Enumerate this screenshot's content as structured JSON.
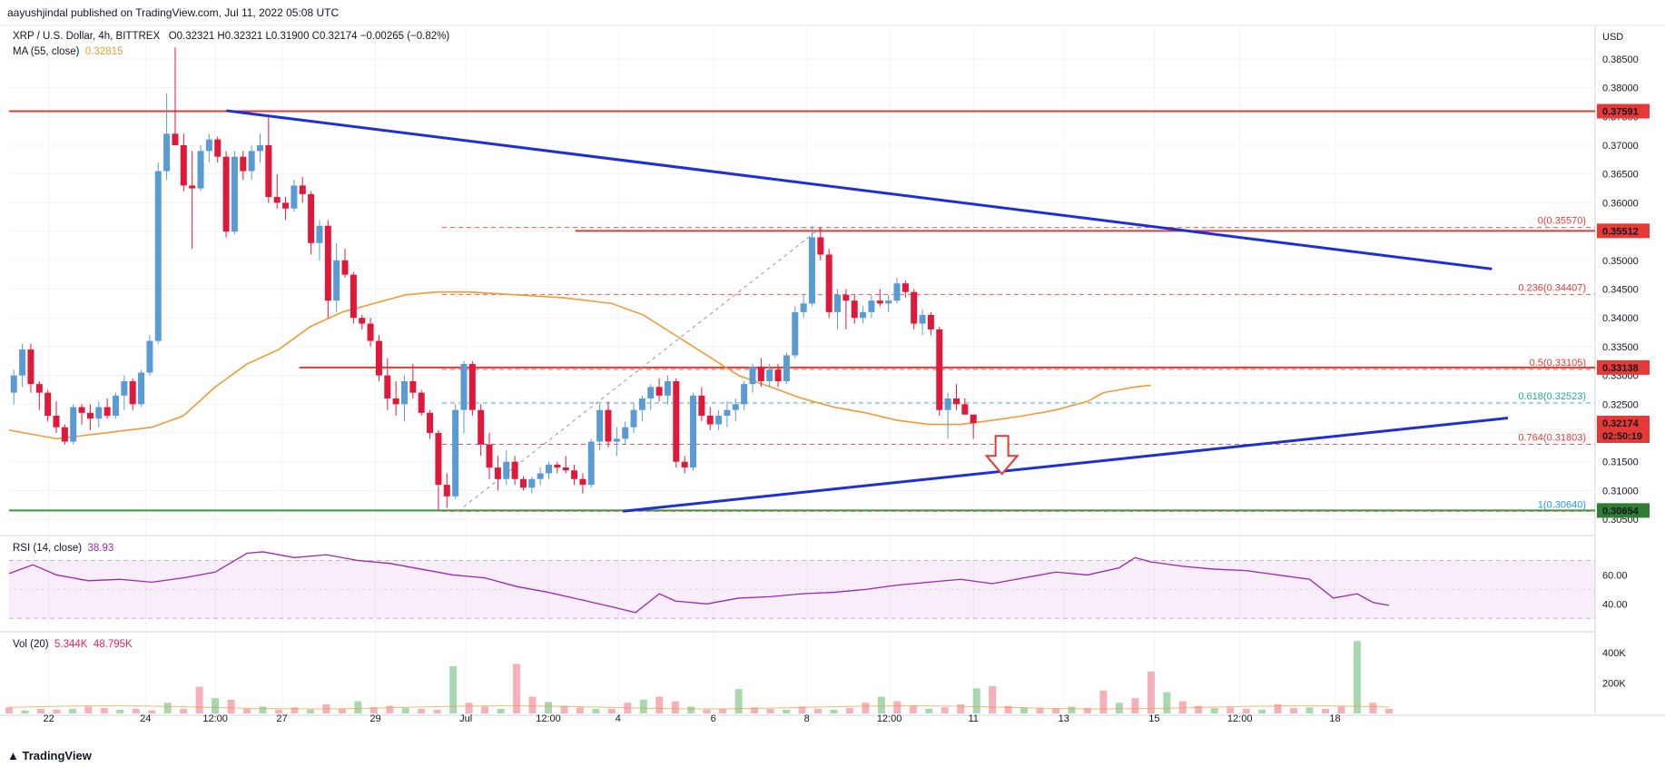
{
  "header": {
    "publisher_text": "aayushjindal published on TradingView.com, Jul 11, 2022 05:08 UTC"
  },
  "symbol_legend": {
    "title": "XRP / U.S. Dollar, 4h, BITTREX",
    "ohlc": "O0.32321  H0.32321  L0.31900  C0.32174  −0.00265 (−0.82%)",
    "ma_label": "MA (55, close)",
    "ma_value": "0.32815"
  },
  "rsi_legend": {
    "label": "RSI (14, close)",
    "value": "38.93"
  },
  "vol_legend": {
    "label": "Vol (20)",
    "v1": "5.344K",
    "v2": "48.795K"
  },
  "price_axis": {
    "currency": "USD",
    "ticks": [
      "0.38500",
      "0.38000",
      "0.37500",
      "0.37000",
      "0.36500",
      "0.36000",
      "0.35500",
      "0.35000",
      "0.34500",
      "0.34000",
      "0.33500",
      "0.33000",
      "0.32500",
      "0.32000",
      "0.31500",
      "0.31000",
      "0.30500"
    ],
    "tags": [
      {
        "text": "0.37591",
        "color": "#e53935"
      },
      {
        "text": "0.35512",
        "color": "#e53935"
      },
      {
        "text": "0.33138",
        "color": "#e53935"
      },
      {
        "text": "0.32174",
        "color": "#e53935"
      },
      {
        "text": "02:50:19",
        "color": "#e53935"
      },
      {
        "text": "0.30654",
        "color": "#2e7d32"
      }
    ]
  },
  "rsi_axis": {
    "ticks": [
      "60.00",
      "40.00"
    ]
  },
  "vol_axis": {
    "ticks": [
      "400K",
      "200K"
    ]
  },
  "time_axis": {
    "ticks": [
      "22",
      "24",
      "12:00",
      "27",
      "29",
      "Jul",
      "12:00",
      "4",
      "6",
      "8",
      "12:00",
      "11",
      "13",
      "15",
      "12:00",
      "18"
    ]
  },
  "fib_labels": [
    "0(0.35570)",
    "0.236(0.34407)",
    "0.5(0.33105)",
    "0.618(0.32523)",
    "0.764(0.31803)",
    "1(0.30640)"
  ],
  "footer": {
    "brand": "TradingView"
  },
  "colors": {
    "up": "#5b9bd5",
    "down": "#e0193b",
    "ma": "#f09a36",
    "trendline": "#1e2fd6",
    "level": "#e53935",
    "support": "#2e9d3a",
    "rsi": "#9c27b0"
  },
  "chart_data": {
    "type": "candlestick",
    "symbol": "XRP / U.S. Dollar",
    "timeframe": "4h",
    "ylim": [
      0.3025,
      0.3905
    ],
    "horizontal_levels": [
      0.37591,
      0.35512,
      0.33138,
      0.30654
    ],
    "fib_levels": [
      {
        "ratio": 0,
        "price": 0.3557
      },
      {
        "ratio": 0.236,
        "price": 0.34407
      },
      {
        "ratio": 0.5,
        "price": 0.33105
      },
      {
        "ratio": 0.618,
        "price": 0.32523
      },
      {
        "ratio": 0.764,
        "price": 0.31803
      },
      {
        "ratio": 1,
        "price": 0.3064
      }
    ],
    "trendlines": [
      {
        "name": "bearish trend line",
        "from": [
          0.137,
          0.376
        ],
        "to": [
          0.935,
          0.3485
        ]
      },
      {
        "name": "bullish trend line",
        "from": [
          0.387,
          0.3064
        ],
        "to": [
          0.945,
          0.3226
        ]
      }
    ],
    "candles": [
      [
        0.327,
        0.331,
        0.325,
        0.33
      ],
      [
        0.33,
        0.3355,
        0.328,
        0.3345
      ],
      [
        0.3345,
        0.3355,
        0.327,
        0.3285
      ],
      [
        0.3285,
        0.329,
        0.324,
        0.327
      ],
      [
        0.327,
        0.3275,
        0.322,
        0.323
      ],
      [
        0.323,
        0.3255,
        0.32,
        0.321
      ],
      [
        0.321,
        0.3215,
        0.318,
        0.3185
      ],
      [
        0.3185,
        0.325,
        0.318,
        0.3245
      ],
      [
        0.3245,
        0.325,
        0.3215,
        0.3235
      ],
      [
        0.3235,
        0.325,
        0.3205,
        0.3225
      ],
      [
        0.3225,
        0.3255,
        0.321,
        0.3245
      ],
      [
        0.3245,
        0.326,
        0.3225,
        0.323
      ],
      [
        0.323,
        0.327,
        0.3225,
        0.3265
      ],
      [
        0.3265,
        0.33,
        0.324,
        0.329
      ],
      [
        0.329,
        0.3295,
        0.324,
        0.325
      ],
      [
        0.325,
        0.331,
        0.3245,
        0.3305
      ],
      [
        0.3305,
        0.337,
        0.33,
        0.336
      ],
      [
        0.336,
        0.367,
        0.3355,
        0.3655
      ],
      [
        0.3655,
        0.379,
        0.364,
        0.372
      ],
      [
        0.372,
        0.387,
        0.37,
        0.37
      ],
      [
        0.37,
        0.372,
        0.362,
        0.363
      ],
      [
        0.363,
        0.369,
        0.352,
        0.3625
      ],
      [
        0.3625,
        0.37,
        0.362,
        0.369
      ],
      [
        0.369,
        0.372,
        0.367,
        0.371
      ],
      [
        0.371,
        0.3715,
        0.367,
        0.368
      ],
      [
        0.368,
        0.369,
        0.354,
        0.355
      ],
      [
        0.355,
        0.369,
        0.3545,
        0.368
      ],
      [
        0.368,
        0.369,
        0.364,
        0.3655
      ],
      [
        0.3655,
        0.37,
        0.364,
        0.369
      ],
      [
        0.369,
        0.372,
        0.367,
        0.37
      ],
      [
        0.37,
        0.375,
        0.36,
        0.361
      ],
      [
        0.361,
        0.365,
        0.359,
        0.36
      ],
      [
        0.36,
        0.361,
        0.357,
        0.359
      ],
      [
        0.359,
        0.364,
        0.3585,
        0.363
      ],
      [
        0.363,
        0.3645,
        0.36,
        0.3615
      ],
      [
        0.3615,
        0.362,
        0.351,
        0.353
      ],
      [
        0.353,
        0.357,
        0.35,
        0.356
      ],
      [
        0.356,
        0.357,
        0.34,
        0.343
      ],
      [
        0.343,
        0.353,
        0.341,
        0.35
      ],
      [
        0.35,
        0.352,
        0.347,
        0.3475
      ],
      [
        0.3475,
        0.348,
        0.339,
        0.34
      ],
      [
        0.34,
        0.3405,
        0.338,
        0.339
      ],
      [
        0.339,
        0.34,
        0.335,
        0.336
      ],
      [
        0.336,
        0.337,
        0.329,
        0.33
      ],
      [
        0.33,
        0.333,
        0.324,
        0.326
      ],
      [
        0.326,
        0.329,
        0.323,
        0.325
      ],
      [
        0.325,
        0.33,
        0.322,
        0.329
      ],
      [
        0.329,
        0.332,
        0.326,
        0.327
      ],
      [
        0.327,
        0.3275,
        0.323,
        0.3235
      ],
      [
        0.3235,
        0.324,
        0.319,
        0.32
      ],
      [
        0.32,
        0.3205,
        0.3065,
        0.311
      ],
      [
        0.311,
        0.313,
        0.307,
        0.309
      ],
      [
        0.309,
        0.325,
        0.3085,
        0.324
      ],
      [
        0.324,
        0.3325,
        0.32,
        0.332
      ],
      [
        0.332,
        0.3325,
        0.323,
        0.324
      ],
      [
        0.324,
        0.325,
        0.316,
        0.318
      ],
      [
        0.318,
        0.32,
        0.312,
        0.314
      ],
      [
        0.314,
        0.316,
        0.31,
        0.312
      ],
      [
        0.312,
        0.317,
        0.311,
        0.315
      ],
      [
        0.315,
        0.316,
        0.311,
        0.312
      ],
      [
        0.312,
        0.3125,
        0.31,
        0.3105
      ],
      [
        0.3105,
        0.3125,
        0.3095,
        0.312
      ],
      [
        0.312,
        0.314,
        0.311,
        0.313
      ],
      [
        0.313,
        0.315,
        0.312,
        0.3145
      ],
      [
        0.3145,
        0.315,
        0.313,
        0.314
      ],
      [
        0.314,
        0.316,
        0.313,
        0.3135
      ],
      [
        0.3135,
        0.3145,
        0.311,
        0.312
      ],
      [
        0.312,
        0.313,
        0.3095,
        0.311
      ],
      [
        0.311,
        0.319,
        0.3105,
        0.3185
      ],
      [
        0.3185,
        0.325,
        0.317,
        0.324
      ],
      [
        0.324,
        0.3255,
        0.3175,
        0.3185
      ],
      [
        0.3185,
        0.321,
        0.316,
        0.319
      ],
      [
        0.319,
        0.322,
        0.318,
        0.321
      ],
      [
        0.321,
        0.325,
        0.32,
        0.324
      ],
      [
        0.324,
        0.3265,
        0.322,
        0.326
      ],
      [
        0.326,
        0.3285,
        0.324,
        0.328
      ],
      [
        0.328,
        0.3295,
        0.3255,
        0.3265
      ],
      [
        0.3265,
        0.33,
        0.325,
        0.329
      ],
      [
        0.329,
        0.3295,
        0.314,
        0.315
      ],
      [
        0.315,
        0.316,
        0.313,
        0.314
      ],
      [
        0.314,
        0.327,
        0.3135,
        0.3265
      ],
      [
        0.3265,
        0.328,
        0.322,
        0.323
      ],
      [
        0.323,
        0.3245,
        0.3205,
        0.3215
      ],
      [
        0.3215,
        0.324,
        0.3205,
        0.323
      ],
      [
        0.323,
        0.3255,
        0.321,
        0.324
      ],
      [
        0.324,
        0.326,
        0.322,
        0.325
      ],
      [
        0.325,
        0.329,
        0.324,
        0.3285
      ],
      [
        0.3285,
        0.332,
        0.327,
        0.3315
      ],
      [
        0.3315,
        0.333,
        0.328,
        0.329
      ],
      [
        0.329,
        0.332,
        0.328,
        0.331
      ],
      [
        0.331,
        0.332,
        0.328,
        0.329
      ],
      [
        0.329,
        0.334,
        0.3285,
        0.3335
      ],
      [
        0.3335,
        0.342,
        0.333,
        0.341
      ],
      [
        0.341,
        0.344,
        0.34,
        0.3425
      ],
      [
        0.3425,
        0.356,
        0.342,
        0.354
      ],
      [
        0.354,
        0.3557,
        0.35,
        0.351
      ],
      [
        0.351,
        0.352,
        0.34,
        0.341
      ],
      [
        0.341,
        0.345,
        0.338,
        0.344
      ],
      [
        0.344,
        0.345,
        0.338,
        0.343
      ],
      [
        0.343,
        0.344,
        0.339,
        0.34
      ],
      [
        0.34,
        0.342,
        0.339,
        0.341
      ],
      [
        0.341,
        0.344,
        0.34,
        0.343
      ],
      [
        0.343,
        0.345,
        0.342,
        0.3425
      ],
      [
        0.3425,
        0.344,
        0.341,
        0.343
      ],
      [
        0.343,
        0.347,
        0.3425,
        0.346
      ],
      [
        0.346,
        0.3465,
        0.3435,
        0.3445
      ],
      [
        0.3445,
        0.345,
        0.338,
        0.339
      ],
      [
        0.339,
        0.3415,
        0.337,
        0.3405
      ],
      [
        0.3405,
        0.341,
        0.337,
        0.338
      ],
      [
        0.338,
        0.3385,
        0.323,
        0.324
      ],
      [
        0.324,
        0.327,
        0.319,
        0.326
      ],
      [
        0.326,
        0.3285,
        0.324,
        0.325
      ],
      [
        0.325,
        0.326,
        0.324,
        0.3232
      ],
      [
        0.3232,
        0.3232,
        0.319,
        0.3217
      ]
    ],
    "ma55": [
      [
        0.0,
        0.3205
      ],
      [
        0.03,
        0.319
      ],
      [
        0.06,
        0.32
      ],
      [
        0.09,
        0.321
      ],
      [
        0.11,
        0.323
      ],
      [
        0.13,
        0.328
      ],
      [
        0.15,
        0.332
      ],
      [
        0.17,
        0.3345
      ],
      [
        0.19,
        0.3385
      ],
      [
        0.21,
        0.341
      ],
      [
        0.23,
        0.3425
      ],
      [
        0.25,
        0.344
      ],
      [
        0.27,
        0.3445
      ],
      [
        0.29,
        0.3445
      ],
      [
        0.32,
        0.344
      ],
      [
        0.35,
        0.3435
      ],
      [
        0.38,
        0.3425
      ],
      [
        0.4,
        0.3405
      ],
      [
        0.42,
        0.337
      ],
      [
        0.44,
        0.3335
      ],
      [
        0.46,
        0.33
      ],
      [
        0.48,
        0.328
      ],
      [
        0.5,
        0.326
      ],
      [
        0.52,
        0.3245
      ],
      [
        0.54,
        0.3235
      ],
      [
        0.56,
        0.3222
      ],
      [
        0.58,
        0.3215
      ],
      [
        0.6,
        0.3215
      ],
      [
        0.62,
        0.3222
      ],
      [
        0.64,
        0.323
      ],
      [
        0.66,
        0.324
      ],
      [
        0.68,
        0.3255
      ],
      [
        0.69,
        0.327
      ],
      [
        0.7,
        0.3275
      ],
      [
        0.71,
        0.328
      ],
      [
        0.72,
        0.3283
      ]
    ],
    "rsi": [
      [
        0.0,
        61
      ],
      [
        0.015,
        67
      ],
      [
        0.03,
        60
      ],
      [
        0.05,
        56
      ],
      [
        0.07,
        57
      ],
      [
        0.09,
        55
      ],
      [
        0.11,
        58
      ],
      [
        0.13,
        62
      ],
      [
        0.15,
        75
      ],
      [
        0.16,
        76
      ],
      [
        0.18,
        72
      ],
      [
        0.2,
        74
      ],
      [
        0.22,
        70
      ],
      [
        0.24,
        68
      ],
      [
        0.26,
        64
      ],
      [
        0.28,
        60
      ],
      [
        0.3,
        58
      ],
      [
        0.32,
        52
      ],
      [
        0.34,
        48
      ],
      [
        0.36,
        43
      ],
      [
        0.38,
        38
      ],
      [
        0.395,
        34
      ],
      [
        0.41,
        47
      ],
      [
        0.42,
        42
      ],
      [
        0.44,
        40
      ],
      [
        0.46,
        44
      ],
      [
        0.48,
        45
      ],
      [
        0.5,
        47
      ],
      [
        0.52,
        48
      ],
      [
        0.54,
        50
      ],
      [
        0.56,
        53
      ],
      [
        0.58,
        55
      ],
      [
        0.6,
        57
      ],
      [
        0.62,
        54
      ],
      [
        0.64,
        58
      ],
      [
        0.66,
        62
      ],
      [
        0.68,
        60
      ],
      [
        0.7,
        65
      ],
      [
        0.71,
        72
      ],
      [
        0.72,
        69
      ],
      [
        0.74,
        66
      ],
      [
        0.76,
        64
      ],
      [
        0.78,
        63
      ],
      [
        0.8,
        60
      ],
      [
        0.82,
        57
      ],
      [
        0.835,
        44
      ],
      [
        0.85,
        47
      ],
      [
        0.86,
        41
      ],
      [
        0.87,
        39
      ]
    ],
    "volume": [
      [
        0.0,
        8
      ],
      [
        0.01,
        4
      ],
      [
        0.02,
        6
      ],
      [
        0.03,
        5
      ],
      [
        0.04,
        6
      ],
      [
        0.05,
        9
      ],
      [
        0.06,
        7
      ],
      [
        0.07,
        5
      ],
      [
        0.08,
        6
      ],
      [
        0.09,
        4
      ],
      [
        0.1,
        14
      ],
      [
        0.11,
        6
      ],
      [
        0.12,
        35
      ],
      [
        0.13,
        20
      ],
      [
        0.14,
        18
      ],
      [
        0.15,
        6
      ],
      [
        0.16,
        9
      ],
      [
        0.17,
        5
      ],
      [
        0.18,
        8
      ],
      [
        0.19,
        5
      ],
      [
        0.2,
        12
      ],
      [
        0.21,
        6
      ],
      [
        0.22,
        16
      ],
      [
        0.23,
        8
      ],
      [
        0.24,
        10
      ],
      [
        0.25,
        7
      ],
      [
        0.26,
        6
      ],
      [
        0.27,
        5
      ],
      [
        0.28,
        62
      ],
      [
        0.29,
        14
      ],
      [
        0.3,
        9
      ],
      [
        0.31,
        6
      ],
      [
        0.32,
        65
      ],
      [
        0.33,
        22
      ],
      [
        0.34,
        15
      ],
      [
        0.35,
        10
      ],
      [
        0.36,
        8
      ],
      [
        0.37,
        6
      ],
      [
        0.38,
        6
      ],
      [
        0.39,
        14
      ],
      [
        0.4,
        18
      ],
      [
        0.41,
        22
      ],
      [
        0.42,
        16
      ],
      [
        0.43,
        9
      ],
      [
        0.44,
        5
      ],
      [
        0.45,
        6
      ],
      [
        0.46,
        32
      ],
      [
        0.47,
        8
      ],
      [
        0.48,
        6
      ],
      [
        0.49,
        5
      ],
      [
        0.5,
        9
      ],
      [
        0.51,
        6
      ],
      [
        0.52,
        5
      ],
      [
        0.53,
        7
      ],
      [
        0.54,
        14
      ],
      [
        0.55,
        22
      ],
      [
        0.56,
        16
      ],
      [
        0.57,
        10
      ],
      [
        0.58,
        6
      ],
      [
        0.59,
        8
      ],
      [
        0.6,
        12
      ],
      [
        0.61,
        33
      ],
      [
        0.62,
        36
      ],
      [
        0.63,
        10
      ],
      [
        0.64,
        8
      ],
      [
        0.65,
        7
      ],
      [
        0.66,
        6
      ],
      [
        0.67,
        9
      ],
      [
        0.68,
        7
      ],
      [
        0.69,
        30
      ],
      [
        0.7,
        14
      ],
      [
        0.71,
        20
      ],
      [
        0.72,
        55
      ],
      [
        0.73,
        28
      ],
      [
        0.74,
        16
      ],
      [
        0.75,
        10
      ],
      [
        0.76,
        7
      ],
      [
        0.77,
        8
      ],
      [
        0.78,
        6
      ],
      [
        0.79,
        5
      ],
      [
        0.8,
        12
      ],
      [
        0.81,
        7
      ],
      [
        0.82,
        8
      ],
      [
        0.83,
        6
      ],
      [
        0.84,
        9
      ],
      [
        0.85,
        95
      ],
      [
        0.86,
        14
      ],
      [
        0.87,
        6
      ]
    ]
  }
}
